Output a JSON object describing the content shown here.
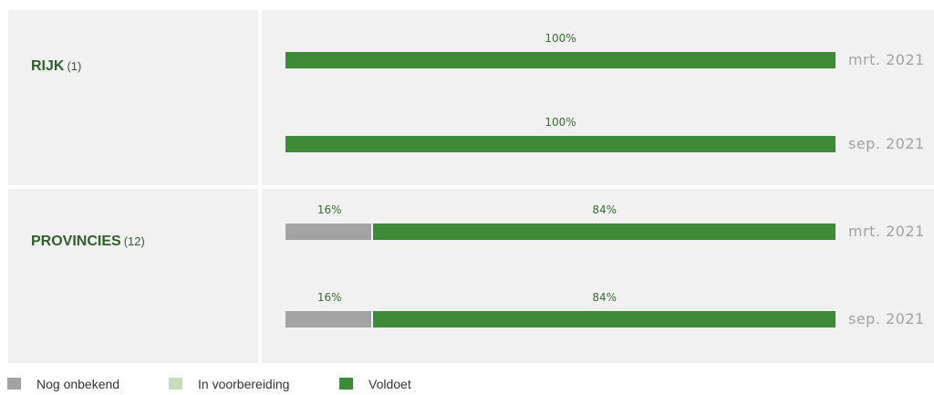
{
  "chart_data": {
    "type": "bar",
    "orientation": "horizontal",
    "stacked": true,
    "groups": [
      {
        "name": "RIJK",
        "count": "(1)",
        "bars": [
          {
            "period": "mrt. 2021",
            "segments": [
              {
                "category": "Voldoet",
                "value": 100,
                "label": "100%"
              }
            ]
          },
          {
            "period": "sep. 2021",
            "segments": [
              {
                "category": "Voldoet",
                "value": 100,
                "label": "100%"
              }
            ]
          }
        ]
      },
      {
        "name": "PROVINCIES",
        "count": "(12)",
        "bars": [
          {
            "period": "mrt. 2021",
            "segments": [
              {
                "category": "Nog onbekend",
                "value": 16,
                "label": "16%"
              },
              {
                "category": "Voldoet",
                "value": 84,
                "label": "84%"
              }
            ]
          },
          {
            "period": "sep. 2021",
            "segments": [
              {
                "category": "Nog onbekend",
                "value": 16,
                "label": "16%"
              },
              {
                "category": "Voldoet",
                "value": 84,
                "label": "84%"
              }
            ]
          }
        ]
      }
    ],
    "legend": {
      "placement": "bottom-left",
      "items": [
        {
          "name": "Nog onbekend",
          "color": "#a3a3a3"
        },
        {
          "name": "In voorbereiding",
          "color": "#c6ddbb"
        },
        {
          "name": "Voldoet",
          "color": "#3d8b37"
        }
      ]
    },
    "xlim": [
      0,
      100
    ]
  }
}
